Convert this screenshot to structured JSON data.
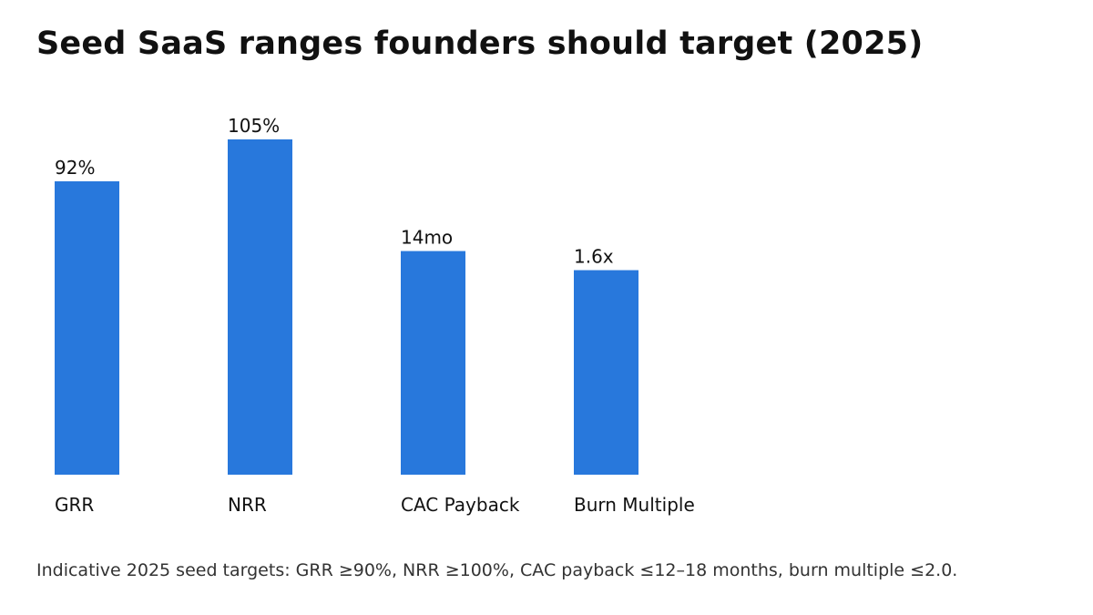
{
  "title": "Seed SaaS ranges founders should target (2025)",
  "footnote": "Indicative 2025 seed targets: GRR ≥90%, NRR ≥100%, CAC payback ≤12–18 months, burn multiple ≤2.0.",
  "colors": {
    "bar": "#2878dc",
    "label_text": "#111111"
  },
  "chart_data": {
    "type": "bar",
    "title": "Seed SaaS ranges founders should target (2025)",
    "xlabel": "",
    "ylabel": "",
    "grid": false,
    "legend": "none",
    "categories": [
      "GRR",
      "NRR",
      "CAC Payback",
      "Burn Multiple"
    ],
    "relative_bar_height": [
      0.875,
      1.0,
      0.667,
      0.61
    ],
    "bar_value": [
      92,
      105,
      14,
      1.6
    ],
    "bar_unit": [
      "%",
      "%",
      "mo",
      "x"
    ],
    "value_labels": [
      "92%",
      "105%",
      "14mo",
      "1.6x"
    ]
  }
}
